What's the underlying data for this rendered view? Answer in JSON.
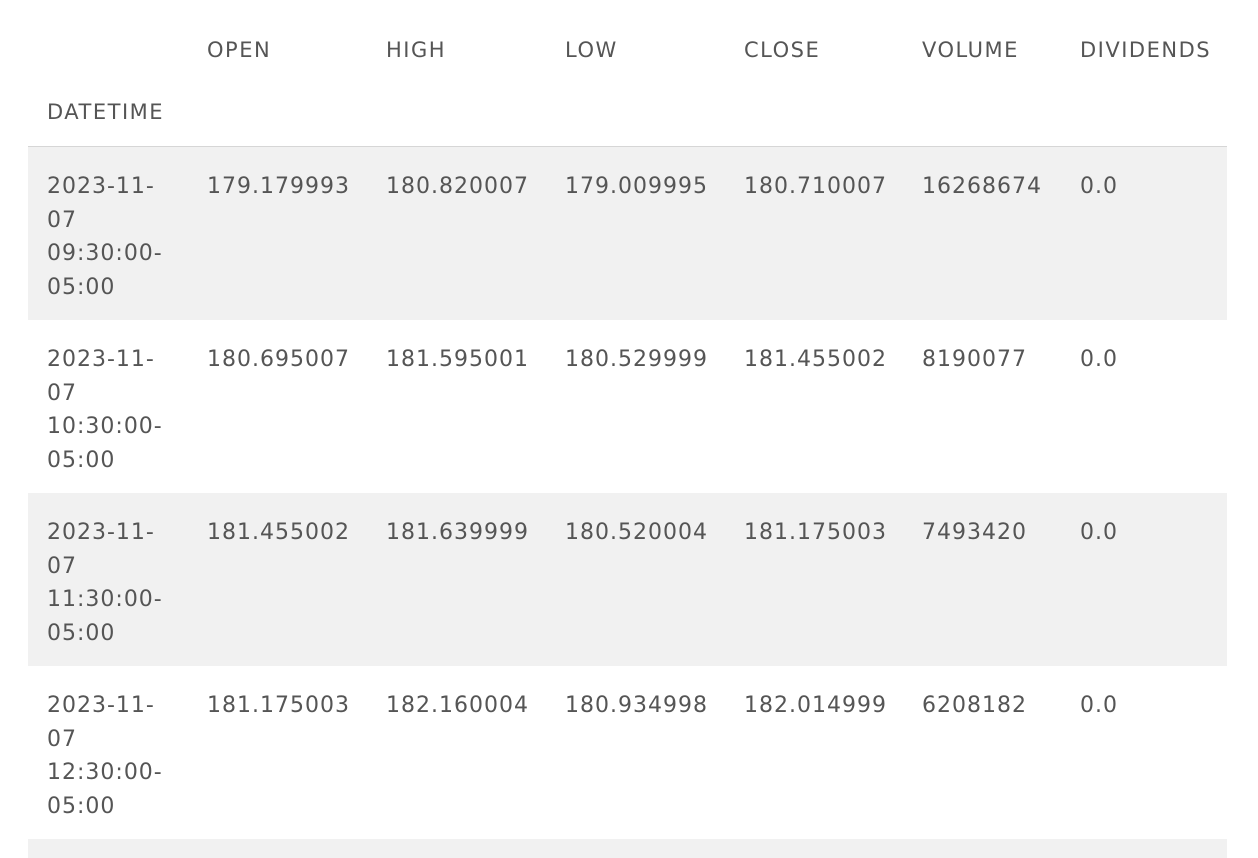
{
  "table": {
    "index_name": "DATETIME",
    "columns": [
      "OPEN",
      "HIGH",
      "LOW",
      "CLOSE",
      "VOLUME",
      "DIVIDENDS"
    ],
    "rows": [
      {
        "datetime": [
          "2023-11-",
          "07",
          "09:30:00-",
          "05:00"
        ],
        "cells": [
          "179.179993",
          "180.820007",
          "179.009995",
          "180.710007",
          "16268674",
          "0.0"
        ]
      },
      {
        "datetime": [
          "2023-11-",
          "07",
          "10:30:00-",
          "05:00"
        ],
        "cells": [
          "180.695007",
          "181.595001",
          "180.529999",
          "181.455002",
          "8190077",
          "0.0"
        ]
      },
      {
        "datetime": [
          "2023-11-",
          "07",
          "11:30:00-",
          "05:00"
        ],
        "cells": [
          "181.455002",
          "181.639999",
          "180.520004",
          "181.175003",
          "7493420",
          "0.0"
        ]
      },
      {
        "datetime": [
          "2023-11-",
          "07",
          "12:30:00-",
          "05:00"
        ],
        "cells": [
          "181.175003",
          "182.160004",
          "180.934998",
          "182.014999",
          "6208182",
          "0.0"
        ]
      }
    ]
  }
}
